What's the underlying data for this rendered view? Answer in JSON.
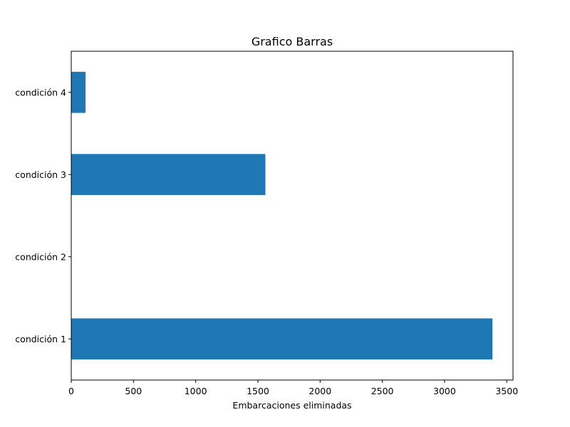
{
  "chart_data": {
    "type": "bar",
    "orientation": "horizontal",
    "title": "Grafico Barras",
    "xlabel": "Embarcaciones eliminadas",
    "ylabel": "",
    "categories": [
      "condición 1",
      "condición 2",
      "condición 3",
      "condición 4"
    ],
    "values": [
      3385,
      0,
      1560,
      115
    ],
    "xlim": [
      0,
      3550
    ],
    "xticks": [
      0,
      500,
      1000,
      1500,
      2000,
      2500,
      3000,
      3500
    ],
    "grid": false,
    "legend": "none",
    "bar_color": "#1f77b4"
  }
}
